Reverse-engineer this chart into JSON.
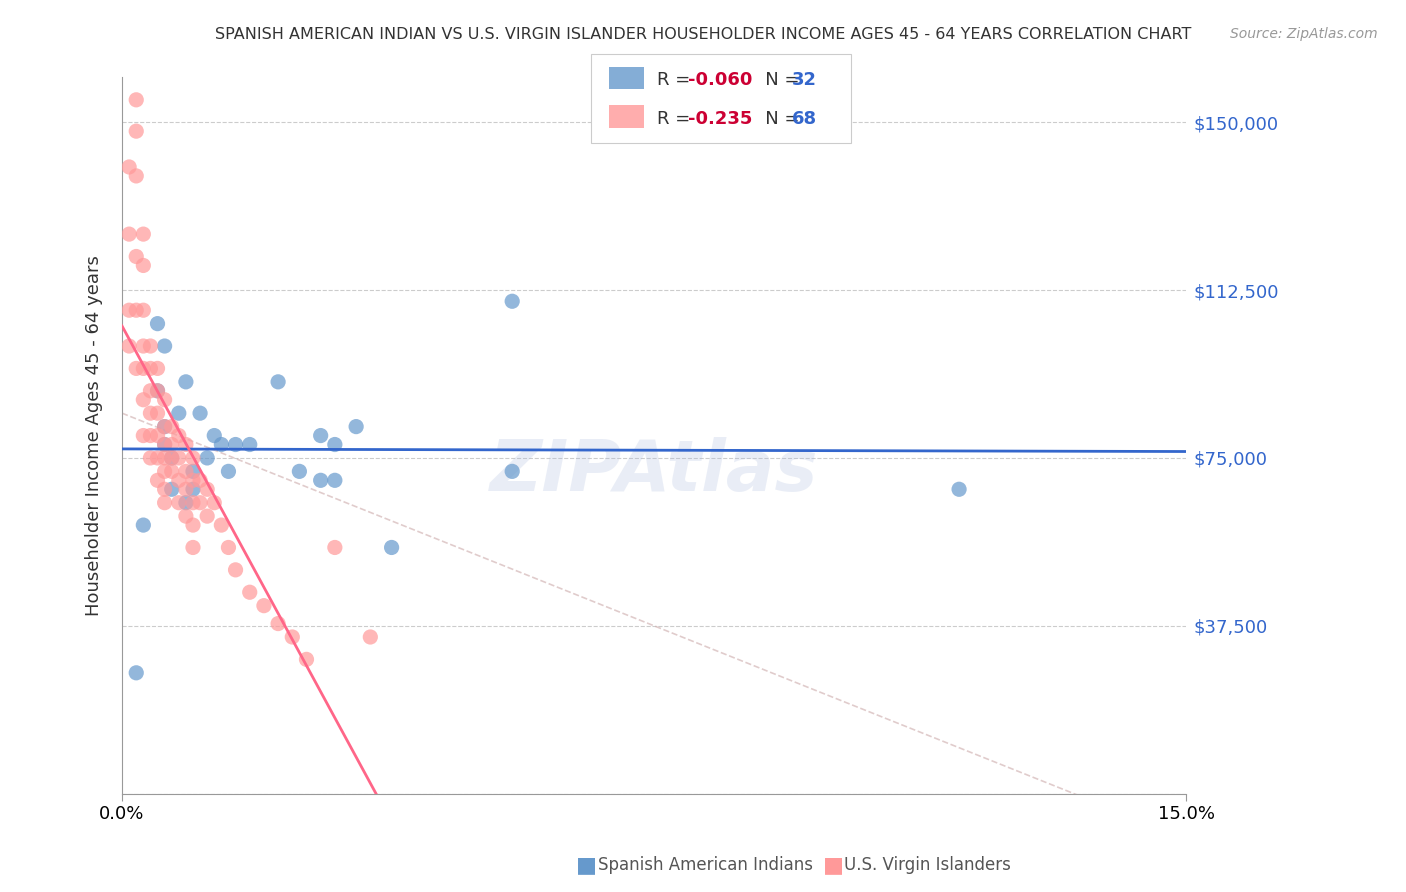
{
  "title": "SPANISH AMERICAN INDIAN VS U.S. VIRGIN ISLANDER HOUSEHOLDER INCOME AGES 45 - 64 YEARS CORRELATION CHART",
  "source": "Source: ZipAtlas.com",
  "ylabel": "Householder Income Ages 45 - 64 years",
  "xlabel": "",
  "xlim": [
    0.0,
    0.15
  ],
  "ylim": [
    0,
    160000
  ],
  "yticks": [
    0,
    37500,
    75000,
    112500,
    150000
  ],
  "ytick_labels": [
    "",
    "$37,500",
    "$75,000",
    "$112,500",
    "$150,000"
  ],
  "xtick_labels": [
    "0.0%",
    "15.0%"
  ],
  "xticks": [
    0.0,
    0.15
  ],
  "legend_R1": "-0.060",
  "legend_N1": "32",
  "legend_R2": "-0.235",
  "legend_N2": "68",
  "color_blue": "#6699CC",
  "color_pink": "#FF9999",
  "line_blue": "#3366CC",
  "line_pink": "#FF6688",
  "line_dashed": "#CCAAAA",
  "watermark": "ZIPAtlas",
  "blue_scatter_x": [
    0.002,
    0.003,
    0.005,
    0.005,
    0.006,
    0.006,
    0.006,
    0.007,
    0.007,
    0.008,
    0.009,
    0.009,
    0.01,
    0.01,
    0.011,
    0.012,
    0.013,
    0.014,
    0.015,
    0.016,
    0.018,
    0.022,
    0.025,
    0.028,
    0.028,
    0.03,
    0.03,
    0.033,
    0.038,
    0.055,
    0.055,
    0.118
  ],
  "blue_scatter_y": [
    27000,
    60000,
    90000,
    105000,
    100000,
    82000,
    78000,
    75000,
    68000,
    85000,
    92000,
    65000,
    72000,
    68000,
    85000,
    75000,
    80000,
    78000,
    72000,
    78000,
    78000,
    92000,
    72000,
    80000,
    70000,
    78000,
    70000,
    82000,
    55000,
    72000,
    110000,
    68000
  ],
  "pink_scatter_x": [
    0.001,
    0.001,
    0.001,
    0.001,
    0.002,
    0.002,
    0.002,
    0.002,
    0.002,
    0.002,
    0.003,
    0.003,
    0.003,
    0.003,
    0.003,
    0.003,
    0.003,
    0.004,
    0.004,
    0.004,
    0.004,
    0.004,
    0.004,
    0.005,
    0.005,
    0.005,
    0.005,
    0.005,
    0.005,
    0.006,
    0.006,
    0.006,
    0.006,
    0.006,
    0.006,
    0.006,
    0.007,
    0.007,
    0.007,
    0.007,
    0.008,
    0.008,
    0.008,
    0.008,
    0.009,
    0.009,
    0.009,
    0.009,
    0.01,
    0.01,
    0.01,
    0.01,
    0.01,
    0.011,
    0.011,
    0.012,
    0.012,
    0.013,
    0.014,
    0.015,
    0.016,
    0.018,
    0.02,
    0.022,
    0.024,
    0.026,
    0.03,
    0.035
  ],
  "pink_scatter_y": [
    140000,
    125000,
    108000,
    100000,
    155000,
    148000,
    138000,
    120000,
    108000,
    95000,
    125000,
    118000,
    108000,
    100000,
    95000,
    88000,
    80000,
    100000,
    95000,
    90000,
    85000,
    80000,
    75000,
    95000,
    90000,
    85000,
    80000,
    75000,
    70000,
    88000,
    82000,
    78000,
    75000,
    72000,
    68000,
    65000,
    82000,
    78000,
    75000,
    72000,
    80000,
    75000,
    70000,
    65000,
    78000,
    72000,
    68000,
    62000,
    75000,
    70000,
    65000,
    60000,
    55000,
    70000,
    65000,
    68000,
    62000,
    65000,
    60000,
    55000,
    50000,
    45000,
    42000,
    38000,
    35000,
    30000,
    55000,
    35000
  ]
}
